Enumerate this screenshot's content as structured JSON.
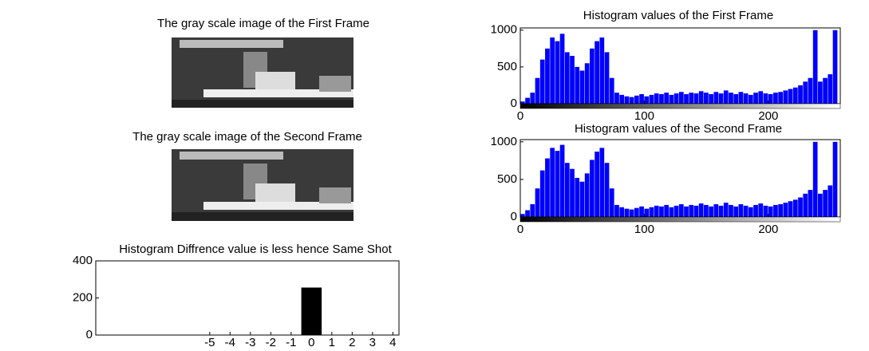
{
  "images": [
    {
      "title": "The gray scale image of the First Frame"
    },
    {
      "title": "The gray scale image of the Second Frame"
    }
  ],
  "chart_data": [
    {
      "type": "histogram",
      "title": "Histogram values of the First Frame",
      "color": "#0000ff",
      "bins": [
        0,
        4,
        8,
        12,
        16,
        20,
        24,
        28,
        32,
        36,
        40,
        44,
        48,
        52,
        56,
        60,
        64,
        68,
        72,
        76,
        80,
        84,
        88,
        92,
        96,
        100,
        104,
        108,
        112,
        116,
        120,
        124,
        128,
        132,
        136,
        140,
        144,
        148,
        152,
        156,
        160,
        164,
        168,
        172,
        176,
        180,
        184,
        188,
        192,
        196,
        200,
        204,
        208,
        212,
        216,
        220,
        224,
        228,
        232,
        236,
        240,
        244,
        248,
        252,
        256
      ],
      "values": [
        30,
        80,
        150,
        350,
        600,
        750,
        900,
        850,
        950,
        700,
        650,
        500,
        450,
        550,
        750,
        850,
        900,
        700,
        350,
        150,
        120,
        100,
        90,
        110,
        130,
        100,
        120,
        140,
        130,
        150,
        120,
        140,
        160,
        130,
        150,
        140,
        170,
        150,
        130,
        160,
        140,
        180,
        150,
        130,
        160,
        140,
        120,
        150,
        170,
        140,
        130,
        150,
        160,
        180,
        200,
        220,
        250,
        300,
        350,
        1000,
        300,
        350,
        400,
        1000
      ],
      "xlim": [
        0,
        258
      ],
      "xticks": [
        0,
        100,
        200
      ],
      "ylim": [
        0,
        1030
      ],
      "yticks": [
        0,
        500,
        1000
      ]
    },
    {
      "type": "histogram",
      "title": "Histogram values of the Second Frame",
      "color": "#0000ff",
      "bins": [
        0,
        4,
        8,
        12,
        16,
        20,
        24,
        28,
        32,
        36,
        40,
        44,
        48,
        52,
        56,
        60,
        64,
        68,
        72,
        76,
        80,
        84,
        88,
        92,
        96,
        100,
        104,
        108,
        112,
        116,
        120,
        124,
        128,
        132,
        136,
        140,
        144,
        148,
        152,
        156,
        160,
        164,
        168,
        172,
        176,
        180,
        184,
        188,
        192,
        196,
        200,
        204,
        208,
        212,
        216,
        220,
        224,
        228,
        232,
        236,
        240,
        244,
        248,
        252,
        256
      ],
      "values": [
        40,
        90,
        170,
        380,
        620,
        780,
        920,
        880,
        960,
        720,
        640,
        520,
        470,
        580,
        760,
        870,
        920,
        720,
        380,
        160,
        130,
        110,
        100,
        120,
        140,
        110,
        130,
        150,
        140,
        160,
        130,
        150,
        170,
        140,
        160,
        150,
        180,
        160,
        140,
        170,
        150,
        190,
        160,
        140,
        170,
        150,
        130,
        160,
        180,
        150,
        140,
        160,
        170,
        190,
        210,
        230,
        260,
        310,
        360,
        1000,
        310,
        360,
        420,
        1000
      ],
      "xlim": [
        0,
        258
      ],
      "xticks": [
        0,
        100,
        200
      ],
      "ylim": [
        0,
        1030
      ],
      "yticks": [
        0,
        500,
        1000
      ]
    },
    {
      "type": "bar",
      "title": "Histogram Diffrence value is less hence Same Shot",
      "color": "#000000",
      "x": [
        -5,
        -4,
        -3,
        -2,
        -1,
        0,
        1,
        2,
        3,
        4
      ],
      "values": [
        0,
        0,
        0,
        0,
        0,
        256,
        0,
        0,
        0,
        0
      ],
      "xlim": [
        -10.6,
        4.3
      ],
      "xticks": [
        -5,
        -4,
        -3,
        -2,
        -1,
        0,
        1,
        2,
        3,
        4
      ],
      "ylim": [
        0,
        400
      ],
      "yticks": [
        0,
        200,
        400
      ]
    }
  ]
}
